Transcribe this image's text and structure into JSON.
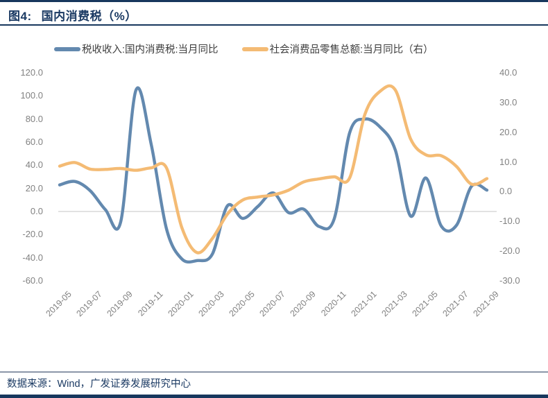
{
  "header": {
    "figure_label": "图4:",
    "title": "国内消费税（%）"
  },
  "legend": [
    {
      "label": "税收收入:国内消费税:当月同比",
      "color": "#6389af"
    },
    {
      "label": "社会消费品零售总额:当月同比（右）",
      "color": "#f4bb74"
    }
  ],
  "footer": {
    "source": "数据来源：Wind，广发证券发展研究中心"
  },
  "colors": {
    "navy": "#17375d",
    "axis_text": "#818181",
    "gridline": "#d9d9d9"
  },
  "chart_data": {
    "type": "line",
    "title": "国内消费税（%）",
    "categories": [
      "2019-05",
      "2019-06",
      "2019-07",
      "2019-08",
      "2019-09",
      "2019-10",
      "2019-11",
      "2019-12",
      "2020-01",
      "2020-02",
      "2020-03",
      "2020-04",
      "2020-05",
      "2020-06",
      "2020-07",
      "2020-08",
      "2020-09",
      "2020-10",
      "2020-11",
      "2020-12",
      "2021-01",
      "2021-02",
      "2021-03",
      "2021-04",
      "2021-05",
      "2021-06",
      "2021-07",
      "2021-08",
      "2021-09"
    ],
    "x_tick_labels": [
      "2019-05",
      "2019-07",
      "2019-09",
      "2019-11",
      "2020-01",
      "2020-03",
      "2020-05",
      "2020-07",
      "2020-09",
      "2020-11",
      "2021-01",
      "2021-03",
      "2021-05",
      "2021-07",
      "2021-09"
    ],
    "series": [
      {
        "name": "税收收入:国内消费税:当月同比",
        "axis": "left",
        "color": "#6389af",
        "values": [
          23,
          26,
          18,
          1.5,
          -9,
          105,
          58,
          -15,
          -41,
          -42.5,
          -37,
          5,
          -6,
          4.5,
          16,
          -1,
          2,
          -13,
          -6,
          68,
          80,
          73,
          53,
          -4,
          29,
          -12.5,
          -12,
          22,
          18.5
        ]
      },
      {
        "name": "社会消费品零售总额:当月同比（右）",
        "axis": "right",
        "color": "#f4bb74",
        "values": [
          8.6,
          9.8,
          7.6,
          7.5,
          7.8,
          7.2,
          8.0,
          8.0,
          -12,
          -20.5,
          -15.8,
          -7.5,
          -2.8,
          -1.8,
          -1.1,
          0.5,
          3.3,
          4.3,
          5.0,
          4.6,
          26,
          33.8,
          34.2,
          17.7,
          12.4,
          12.1,
          8.5,
          2.5,
          4.4
        ]
      }
    ],
    "left_axis": {
      "labels": [
        "120.0",
        "100.0",
        "80.0",
        "60.0",
        "40.0",
        "20.0",
        "0.0",
        "-20.0",
        "-40.0",
        "-60.0"
      ],
      "range": [
        120,
        -60
      ]
    },
    "right_axis": {
      "labels": [
        "40.0",
        "30.0",
        "20.0",
        "10.0",
        "0.0",
        "-10.0",
        "-20.0",
        "-30.0"
      ],
      "range": [
        40,
        -30
      ]
    },
    "gridlines": {
      "zero_line_only": true,
      "color": "#d9d9d9"
    },
    "legend_position": "top"
  }
}
